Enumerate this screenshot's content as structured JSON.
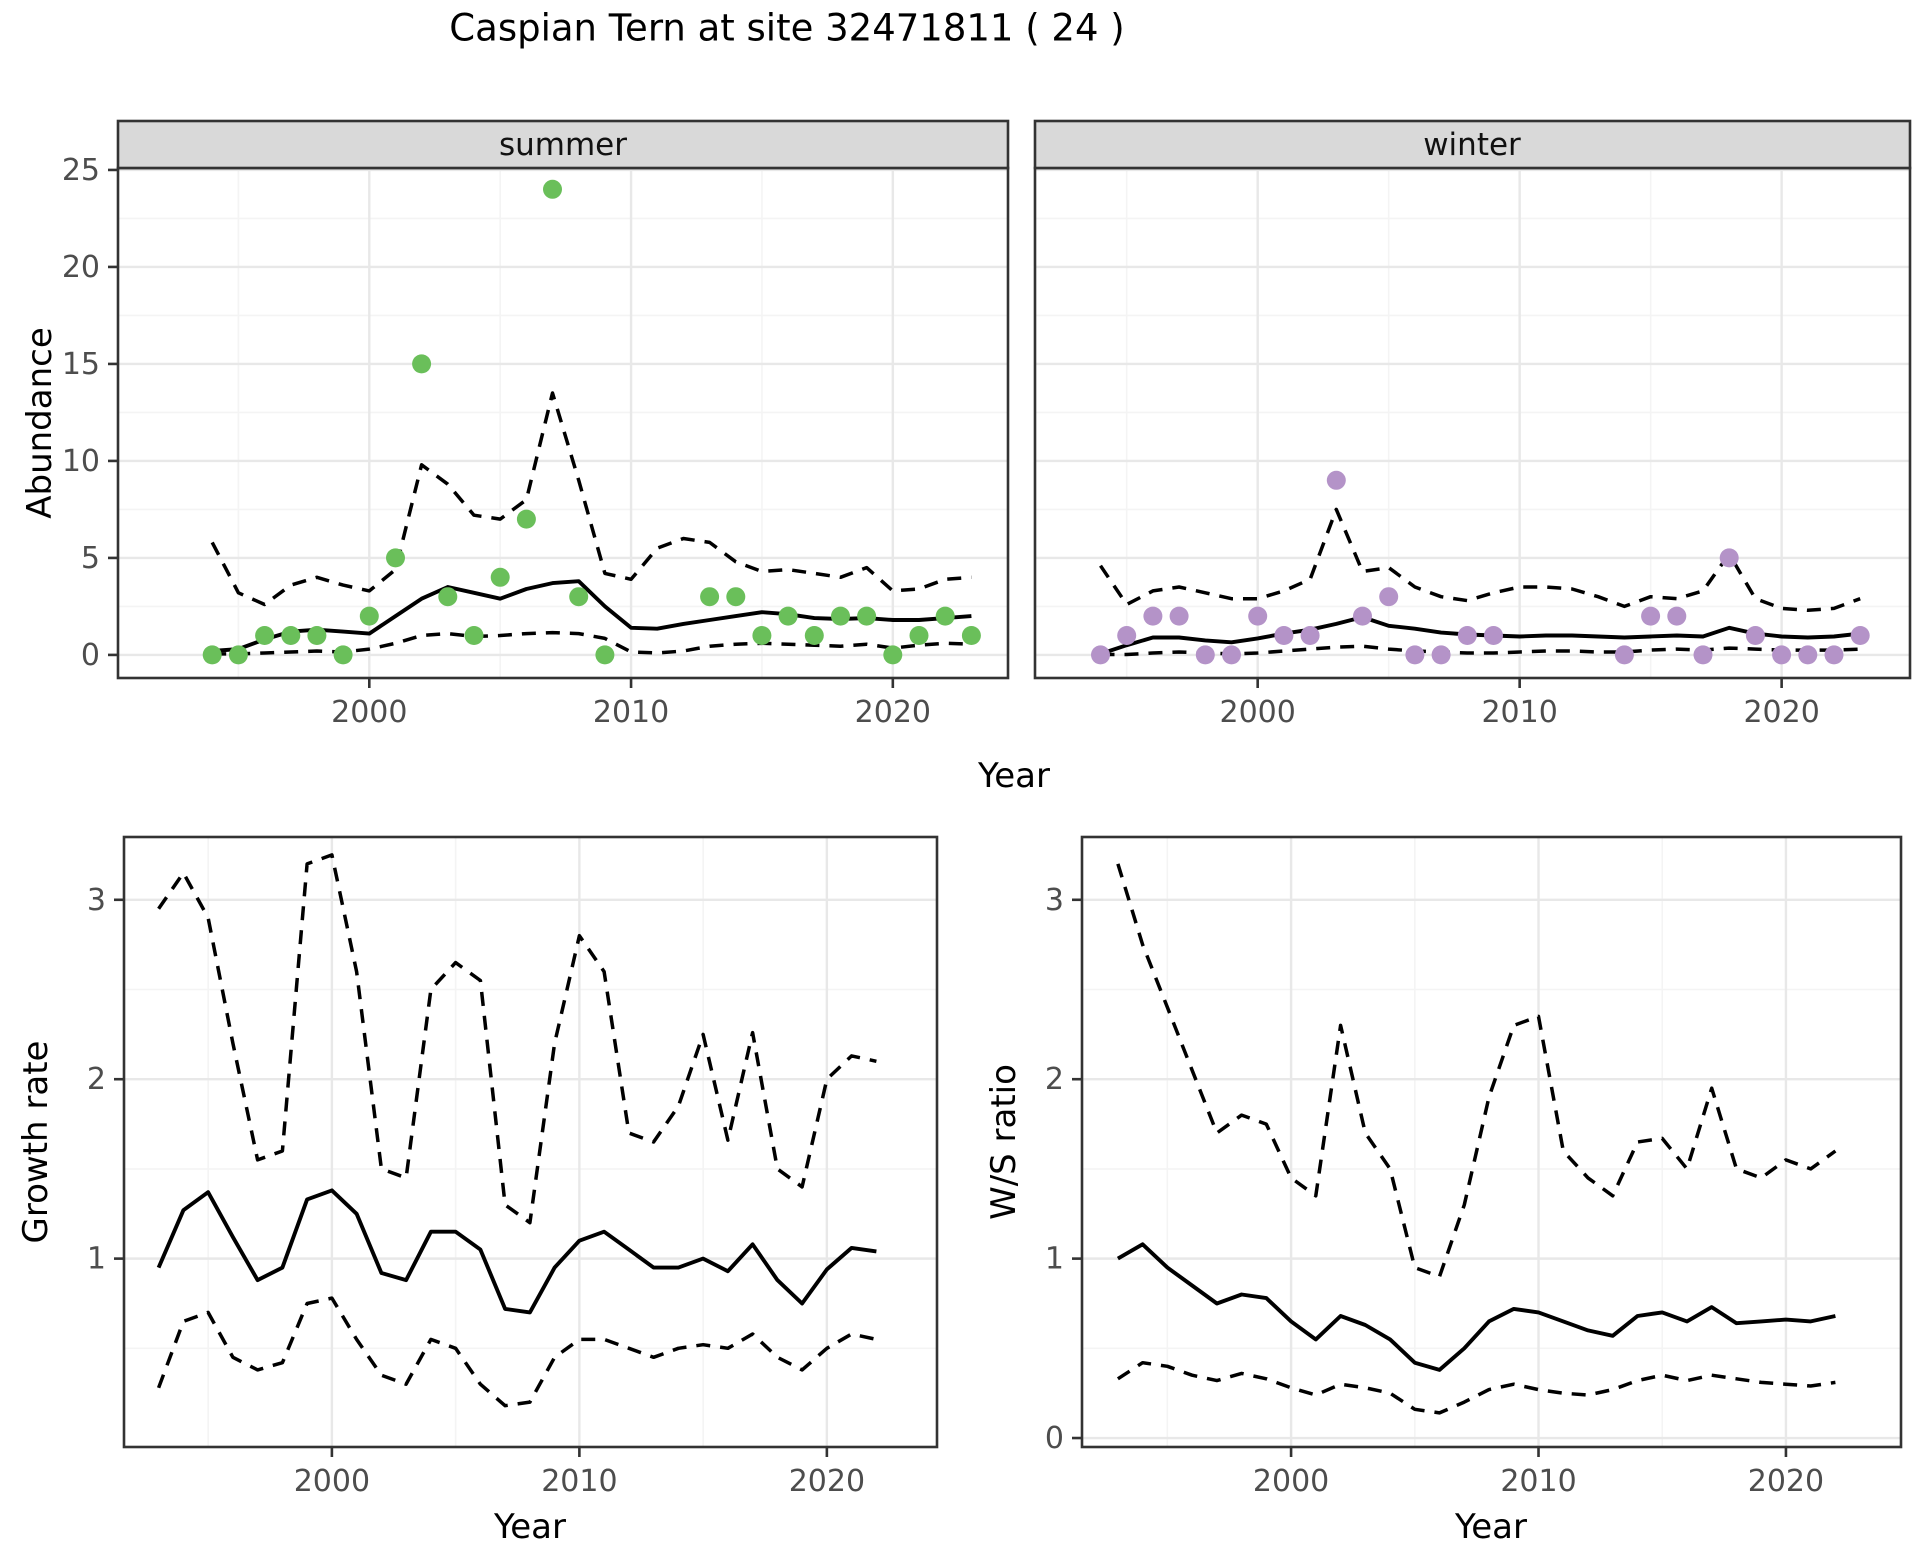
{
  "title": "Caspian Tern at site 32471811 ( 24 )",
  "colors": {
    "summer_point": "#6abf5a",
    "winter_point": "#b493c8",
    "line": "#000000",
    "strip_bg": "#d9d9d9",
    "strip_border": "#333333",
    "panel_border": "#333333",
    "grid_major": "#e8e8e8",
    "grid_minor": "#f4f4f4",
    "tick_text": "#4d4d4d"
  },
  "chart_data": [
    {
      "id": "abundance-summer",
      "type": "scatter",
      "facet": "summer",
      "xlabel": "Year",
      "ylabel": "Abundance",
      "xlim": [
        1990.4,
        2024.4
      ],
      "ylim": [
        -1.19,
        25.1
      ],
      "xticks": [
        2000,
        2010,
        2020
      ],
      "xticks_minor": [
        1995,
        2005,
        2015
      ],
      "yticks": [
        0,
        5,
        10,
        15,
        20,
        25
      ],
      "yticks_minor": [
        2.5,
        7.5,
        12.5,
        17.5,
        22.5
      ],
      "show_ylabels": true,
      "grid": true,
      "legend": "none",
      "point_color": "#6abf5a",
      "points": {
        "x": [
          1994,
          1995,
          1996,
          1997,
          1998,
          1999,
          2000,
          2001,
          2002,
          2003,
          2004,
          2005,
          2006,
          2007,
          2008,
          2009,
          2013,
          2014,
          2015,
          2016,
          2017,
          2018,
          2019,
          2020,
          2021,
          2022,
          2023
        ],
        "y": [
          0,
          0,
          1,
          1,
          1,
          0,
          2,
          5,
          15,
          3,
          1,
          4,
          7,
          24,
          3,
          0,
          3,
          3,
          1,
          2,
          1,
          2,
          2,
          0,
          1,
          2,
          1
        ]
      },
      "series": [
        {
          "name": "median",
          "style": "solid",
          "x": [
            1994,
            1995,
            1996,
            1997,
            1998,
            1999,
            2000,
            2001,
            2002,
            2003,
            2004,
            2005,
            2006,
            2007,
            2008,
            2009,
            2010,
            2011,
            2012,
            2013,
            2014,
            2015,
            2016,
            2017,
            2018,
            2019,
            2020,
            2021,
            2022,
            2023
          ],
          "y": [
            0.2,
            0.3,
            0.8,
            1.2,
            1.3,
            1.2,
            1.1,
            2.0,
            2.9,
            3.5,
            3.2,
            2.9,
            3.4,
            3.7,
            3.8,
            2.5,
            1.4,
            1.35,
            1.6,
            1.8,
            2.0,
            2.2,
            2.1,
            1.9,
            1.85,
            1.9,
            1.8,
            1.8,
            1.9,
            2.0
          ]
        },
        {
          "name": "ci_upper",
          "style": "dashed",
          "x": [
            1994,
            1995,
            1996,
            1997,
            1998,
            1999,
            2000,
            2001,
            2002,
            2003,
            2004,
            2005,
            2006,
            2007,
            2008,
            2009,
            2010,
            2011,
            2012,
            2013,
            2014,
            2015,
            2016,
            2017,
            2018,
            2019,
            2020,
            2021,
            2022,
            2023
          ],
          "y": [
            5.8,
            3.2,
            2.6,
            3.6,
            4.0,
            3.6,
            3.3,
            4.4,
            9.8,
            8.8,
            7.2,
            7.0,
            8.0,
            13.5,
            9.0,
            4.2,
            3.9,
            5.5,
            6.0,
            5.8,
            4.8,
            4.3,
            4.4,
            4.2,
            4.0,
            4.5,
            3.3,
            3.4,
            3.9,
            4.0
          ]
        },
        {
          "name": "ci_lower",
          "style": "dashed",
          "x": [
            1994,
            1995,
            1996,
            1997,
            1998,
            1999,
            2000,
            2001,
            2002,
            2003,
            2004,
            2005,
            2006,
            2007,
            2008,
            2009,
            2010,
            2011,
            2012,
            2013,
            2014,
            2015,
            2016,
            2017,
            2018,
            2019,
            2020,
            2021,
            2022,
            2023
          ],
          "y": [
            0.05,
            0.05,
            0.1,
            0.15,
            0.2,
            0.15,
            0.3,
            0.6,
            1.0,
            1.1,
            0.95,
            1.0,
            1.1,
            1.15,
            1.1,
            0.85,
            0.15,
            0.1,
            0.2,
            0.45,
            0.55,
            0.6,
            0.55,
            0.5,
            0.45,
            0.55,
            0.35,
            0.5,
            0.6,
            0.55
          ]
        }
      ]
    },
    {
      "id": "abundance-winter",
      "type": "scatter",
      "facet": "winter",
      "xlabel": "Year",
      "ylabel": "Abundance",
      "xlim": [
        1991.5,
        2024.9
      ],
      "ylim": [
        -1.19,
        25.1
      ],
      "xticks": [
        2000,
        2010,
        2020
      ],
      "xticks_minor": [
        1995,
        2005,
        2015
      ],
      "yticks": [
        0,
        5,
        10,
        15,
        20,
        25
      ],
      "yticks_minor": [
        2.5,
        7.5,
        12.5,
        17.5,
        22.5
      ],
      "show_ylabels": false,
      "grid": true,
      "legend": "none",
      "point_color": "#b493c8",
      "points": {
        "x": [
          1994,
          1995,
          1996,
          1997,
          1998,
          1999,
          2000,
          2001,
          2002,
          2003,
          2004,
          2005,
          2006,
          2007,
          2008,
          2009,
          2014,
          2015,
          2016,
          2017,
          2018,
          2019,
          2020,
          2021,
          2022,
          2023
        ],
        "y": [
          0,
          1,
          2,
          2,
          0,
          0,
          2,
          1,
          1,
          9,
          2,
          3,
          0,
          0,
          1,
          1,
          0,
          2,
          2,
          0,
          5,
          1,
          0,
          0,
          0,
          1
        ]
      },
      "series": [
        {
          "name": "median",
          "style": "solid",
          "x": [
            1994,
            1995,
            1996,
            1997,
            1998,
            1999,
            2000,
            2001,
            2002,
            2003,
            2004,
            2005,
            2006,
            2007,
            2008,
            2009,
            2010,
            2011,
            2012,
            2013,
            2014,
            2015,
            2016,
            2017,
            2018,
            2019,
            2020,
            2021,
            2022,
            2023
          ],
          "y": [
            0.05,
            0.5,
            0.9,
            0.9,
            0.75,
            0.65,
            0.85,
            1.1,
            1.3,
            1.6,
            1.95,
            1.5,
            1.35,
            1.15,
            1.05,
            1.0,
            0.95,
            1.0,
            1.0,
            0.95,
            0.9,
            0.95,
            1.0,
            0.95,
            1.4,
            1.1,
            0.95,
            0.9,
            0.95,
            1.1
          ]
        },
        {
          "name": "ci_upper",
          "style": "dashed",
          "x": [
            1994,
            1995,
            1996,
            1997,
            1998,
            1999,
            2000,
            2001,
            2002,
            2003,
            2004,
            2005,
            2006,
            2007,
            2008,
            2009,
            2010,
            2011,
            2012,
            2013,
            2014,
            2015,
            2016,
            2017,
            2018,
            2019,
            2020,
            2021,
            2022,
            2023
          ],
          "y": [
            4.6,
            2.6,
            3.3,
            3.5,
            3.2,
            2.9,
            2.9,
            3.3,
            3.9,
            7.5,
            4.3,
            4.5,
            3.5,
            3.0,
            2.8,
            3.2,
            3.5,
            3.5,
            3.4,
            3.0,
            2.5,
            3.0,
            2.9,
            3.3,
            5.2,
            2.9,
            2.4,
            2.3,
            2.4,
            2.9
          ]
        },
        {
          "name": "ci_lower",
          "style": "dashed",
          "x": [
            1994,
            1995,
            1996,
            1997,
            1998,
            1999,
            2000,
            2001,
            2002,
            2003,
            2004,
            2005,
            2006,
            2007,
            2008,
            2009,
            2010,
            2011,
            2012,
            2013,
            2014,
            2015,
            2016,
            2017,
            2018,
            2019,
            2020,
            2021,
            2022,
            2023
          ],
          "y": [
            0.02,
            0.02,
            0.1,
            0.15,
            0.1,
            0.05,
            0.1,
            0.2,
            0.3,
            0.4,
            0.45,
            0.3,
            0.2,
            0.15,
            0.1,
            0.1,
            0.15,
            0.2,
            0.2,
            0.15,
            0.15,
            0.25,
            0.3,
            0.25,
            0.35,
            0.3,
            0.25,
            0.25,
            0.25,
            0.3
          ]
        }
      ]
    },
    {
      "id": "growth-rate",
      "type": "line",
      "facet": null,
      "xlabel": "Year",
      "ylabel": "Growth rate",
      "xlim": [
        1991.6,
        2024.45
      ],
      "ylim": [
        -0.05,
        3.35
      ],
      "xticks": [
        2000,
        2010,
        2020
      ],
      "xticks_minor": [
        1995,
        2005,
        2015
      ],
      "yticks": [
        1,
        2,
        3
      ],
      "yticks_minor": [
        0.5,
        1.5,
        2.5
      ],
      "show_ylabels": true,
      "grid": true,
      "legend": "none",
      "point_color": null,
      "points": {
        "x": [],
        "y": []
      },
      "series": [
        {
          "name": "median",
          "style": "solid",
          "x": [
            1993,
            1994,
            1995,
            1996,
            1997,
            1998,
            1999,
            2000,
            2001,
            2002,
            2003,
            2004,
            2005,
            2006,
            2007,
            2008,
            2009,
            2010,
            2011,
            2012,
            2013,
            2014,
            2015,
            2016,
            2017,
            2018,
            2019,
            2020,
            2021,
            2022
          ],
          "y": [
            0.95,
            1.27,
            1.37,
            1.12,
            0.88,
            0.95,
            1.33,
            1.38,
            1.25,
            0.92,
            0.88,
            1.15,
            1.15,
            1.05,
            0.72,
            0.7,
            0.95,
            1.1,
            1.15,
            1.05,
            0.95,
            0.95,
            1.0,
            0.93,
            1.08,
            0.88,
            0.75,
            0.94,
            1.06,
            1.04
          ]
        },
        {
          "name": "ci_upper",
          "style": "dashed",
          "x": [
            1993,
            1994,
            1995,
            1996,
            1997,
            1998,
            1999,
            2000,
            2001,
            2002,
            2003,
            2004,
            2005,
            2006,
            2007,
            2008,
            2009,
            2010,
            2011,
            2012,
            2013,
            2014,
            2015,
            2016,
            2017,
            2018,
            2019,
            2020,
            2021,
            2022
          ],
          "y": [
            2.95,
            3.15,
            2.9,
            2.2,
            1.55,
            1.6,
            3.2,
            3.25,
            2.6,
            1.5,
            1.45,
            2.5,
            2.65,
            2.55,
            1.3,
            1.2,
            2.2,
            2.8,
            2.6,
            1.7,
            1.65,
            1.85,
            2.25,
            1.66,
            2.26,
            1.5,
            1.4,
            2.0,
            2.13,
            2.1
          ]
        },
        {
          "name": "ci_lower",
          "style": "dashed",
          "x": [
            1993,
            1994,
            1995,
            1996,
            1997,
            1998,
            1999,
            2000,
            2001,
            2002,
            2003,
            2004,
            2005,
            2006,
            2007,
            2008,
            2009,
            2010,
            2011,
            2012,
            2013,
            2014,
            2015,
            2016,
            2017,
            2018,
            2019,
            2020,
            2021,
            2022
          ],
          "y": [
            0.28,
            0.65,
            0.7,
            0.45,
            0.38,
            0.42,
            0.75,
            0.78,
            0.55,
            0.35,
            0.3,
            0.55,
            0.5,
            0.3,
            0.18,
            0.2,
            0.45,
            0.55,
            0.55,
            0.5,
            0.45,
            0.5,
            0.52,
            0.5,
            0.58,
            0.45,
            0.38,
            0.5,
            0.58,
            0.55
          ]
        }
      ]
    },
    {
      "id": "ws-ratio",
      "type": "line",
      "facet": null,
      "xlabel": "Year",
      "ylabel": "W/S ratio",
      "xlim": [
        1991.55,
        2024.65
      ],
      "ylim": [
        -0.05,
        3.35
      ],
      "xticks": [
        2000,
        2010,
        2020
      ],
      "xticks_minor": [
        1995,
        2005,
        2015
      ],
      "yticks": [
        0,
        1,
        2,
        3
      ],
      "yticks_minor": [
        0.5,
        1.5,
        2.5
      ],
      "show_ylabels": true,
      "grid": true,
      "legend": "none",
      "point_color": null,
      "points": {
        "x": [],
        "y": []
      },
      "series": [
        {
          "name": "median",
          "style": "solid",
          "x": [
            1993,
            1994,
            1995,
            1996,
            1997,
            1998,
            1999,
            2000,
            2001,
            2002,
            2003,
            2004,
            2005,
            2006,
            2007,
            2008,
            2009,
            2010,
            2011,
            2012,
            2013,
            2014,
            2015,
            2016,
            2017,
            2018,
            2019,
            2020,
            2021,
            2022
          ],
          "y": [
            1.0,
            1.08,
            0.95,
            0.85,
            0.75,
            0.8,
            0.78,
            0.65,
            0.55,
            0.68,
            0.63,
            0.55,
            0.42,
            0.38,
            0.5,
            0.65,
            0.72,
            0.7,
            0.65,
            0.6,
            0.57,
            0.68,
            0.7,
            0.65,
            0.73,
            0.64,
            0.65,
            0.66,
            0.65,
            0.68
          ]
        },
        {
          "name": "ci_upper",
          "style": "dashed",
          "x": [
            1993,
            1994,
            1995,
            1996,
            1997,
            1998,
            1999,
            2000,
            2001,
            2002,
            2003,
            2004,
            2005,
            2006,
            2007,
            2008,
            2009,
            2010,
            2011,
            2012,
            2013,
            2014,
            2015,
            2016,
            2017,
            2018,
            2019,
            2020,
            2021,
            2022
          ],
          "y": [
            3.2,
            2.75,
            2.4,
            2.05,
            1.7,
            1.8,
            1.75,
            1.45,
            1.35,
            2.3,
            1.7,
            1.5,
            0.95,
            0.9,
            1.3,
            1.9,
            2.3,
            2.35,
            1.6,
            1.45,
            1.35,
            1.65,
            1.67,
            1.5,
            1.95,
            1.5,
            1.45,
            1.55,
            1.5,
            1.6
          ]
        },
        {
          "name": "ci_lower",
          "style": "dashed",
          "x": [
            1993,
            1994,
            1995,
            1996,
            1997,
            1998,
            1999,
            2000,
            2001,
            2002,
            2003,
            2004,
            2005,
            2006,
            2007,
            2008,
            2009,
            2010,
            2011,
            2012,
            2013,
            2014,
            2015,
            2016,
            2017,
            2018,
            2019,
            2020,
            2021,
            2022
          ],
          "y": [
            0.33,
            0.42,
            0.4,
            0.35,
            0.32,
            0.36,
            0.33,
            0.28,
            0.24,
            0.3,
            0.28,
            0.25,
            0.16,
            0.14,
            0.2,
            0.27,
            0.3,
            0.27,
            0.25,
            0.24,
            0.27,
            0.32,
            0.35,
            0.32,
            0.35,
            0.33,
            0.31,
            0.3,
            0.29,
            0.31
          ]
        }
      ]
    }
  ]
}
